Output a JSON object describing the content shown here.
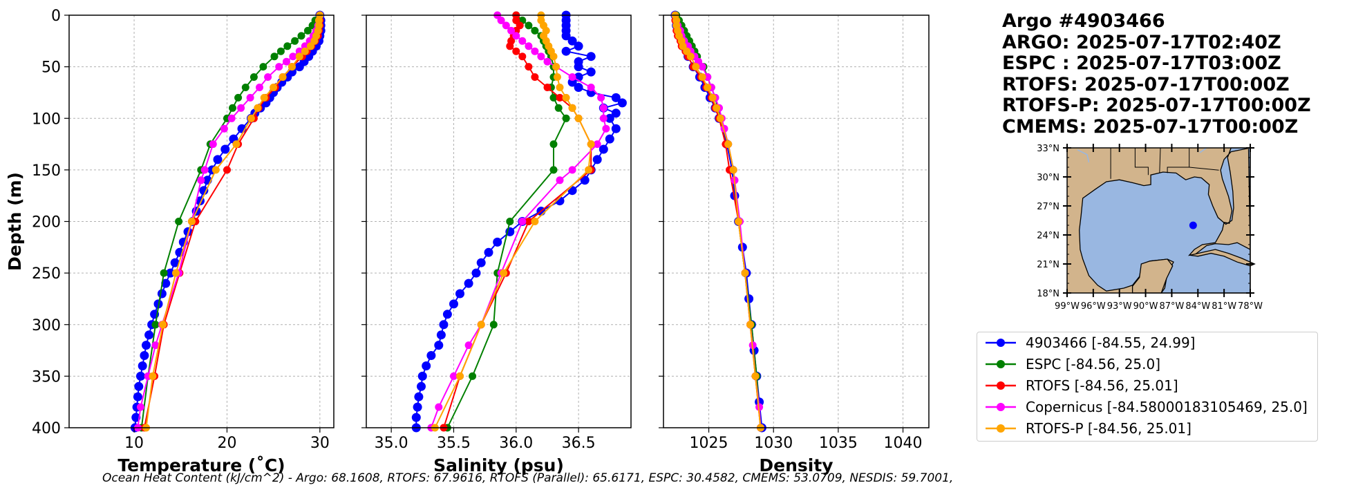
{
  "info": {
    "title": "Argo #4903466",
    "lines": [
      "ARGO: 2025-07-17T02:40Z",
      "ESPC : 2025-07-17T03:00Z",
      "RTOFS: 2025-07-17T00:00Z",
      "RTOFS-P: 2025-07-17T00:00Z",
      "CMEMS: 2025-07-17T00:00Z"
    ]
  },
  "footer": "Ocean Heat Content (kJ/cm^2) - Argo: 68.1608,  RTOFS: 67.9616,  RTOFS (Parallel): 65.6171,  ESPC: 30.4582,  CMEMS: 53.0709,  NESDIS: 59.7001,",
  "colors": {
    "argo": "#0000ff",
    "espc": "#008000",
    "rtofs": "#ff0000",
    "copernicus": "#ff00ff",
    "rtofsp": "#ffa500",
    "land": "#d2b48c",
    "ocean": "#99b7e1",
    "grid": "#b0b0b0"
  },
  "legend": [
    {
      "label": "4903466 [-84.55, 24.99]",
      "color": "#0000ff"
    },
    {
      "label": "ESPC [-84.56, 25.0]",
      "color": "#008000"
    },
    {
      "label": "RTOFS [-84.56, 25.01]",
      "color": "#ff0000"
    },
    {
      "label": "Copernicus [-84.58000183105469, 25.0]",
      "color": "#ff00ff"
    },
    {
      "label": "RTOFS-P [-84.56, 25.01]",
      "color": "#ffa500"
    }
  ],
  "map": {
    "lat_ticks": [
      "33°N",
      "30°N",
      "27°N",
      "24°N",
      "21°N",
      "18°N"
    ],
    "lat_values": [
      33,
      30,
      27,
      24,
      21,
      18
    ],
    "lon_ticks": [
      "99°W",
      "96°W",
      "93°W",
      "90°W",
      "87°W",
      "84°W",
      "81°W",
      "78°W"
    ],
    "lon_values": [
      -99,
      -96,
      -93,
      -90,
      -87,
      -84,
      -81,
      -78
    ],
    "lon_range": [
      -99,
      -78
    ],
    "lat_range": [
      18,
      33
    ],
    "float_position": [
      -84.55,
      24.99
    ]
  },
  "chart_data": [
    {
      "type": "line",
      "xlabel": "Temperature (˚C)",
      "ylabel": "Depth (m)",
      "xlim": [
        3,
        31.5
      ],
      "ylim": [
        400,
        0
      ],
      "x_ticks": [
        10,
        20,
        30
      ],
      "y_ticks": [
        0,
        50,
        100,
        150,
        200,
        250,
        300,
        350,
        400
      ],
      "series": [
        {
          "name": "4903466",
          "color": "#0000ff",
          "depth": [
            0,
            5,
            10,
            15,
            20,
            25,
            30,
            35,
            40,
            45,
            50,
            55,
            60,
            65,
            70,
            75,
            80,
            85,
            90,
            95,
            100,
            110,
            120,
            130,
            140,
            150,
            160,
            170,
            180,
            190,
            200,
            210,
            220,
            230,
            240,
            250,
            260,
            270,
            280,
            290,
            300,
            310,
            320,
            330,
            340,
            350,
            360,
            370,
            380,
            390,
            400
          ],
          "values": [
            30.0,
            30.1,
            30.1,
            30.1,
            30.0,
            29.9,
            29.6,
            29.2,
            28.8,
            28.3,
            27.8,
            27.0,
            26.5,
            25.9,
            25.4,
            25.0,
            24.6,
            24.2,
            23.6,
            23.0,
            22.6,
            21.6,
            20.7,
            19.8,
            19.0,
            18.4,
            17.9,
            17.5,
            17.1,
            16.7,
            16.3,
            15.8,
            15.3,
            14.9,
            14.4,
            13.9,
            13.4,
            13.0,
            12.6,
            12.2,
            11.9,
            11.6,
            11.3,
            11.1,
            10.9,
            10.7,
            10.5,
            10.4,
            10.3,
            10.2,
            10.1
          ]
        },
        {
          "name": "ESPC",
          "color": "#008000",
          "depth": [
            0,
            5,
            10,
            15,
            20,
            25,
            30,
            35,
            40,
            50,
            60,
            70,
            80,
            90,
            100,
            125,
            150,
            200,
            250,
            300,
            350,
            400
          ],
          "values": [
            30.0,
            29.5,
            29.2,
            28.7,
            28.0,
            27.3,
            26.5,
            25.8,
            25.1,
            23.9,
            22.9,
            22.0,
            21.2,
            20.6,
            20.0,
            18.2,
            17.2,
            14.8,
            13.2,
            12.3,
            11.5,
            10.8
          ]
        },
        {
          "name": "RTOFS",
          "color": "#ff0000",
          "depth": [
            0,
            5,
            10,
            15,
            20,
            25,
            30,
            35,
            40,
            50,
            60,
            70,
            80,
            90,
            100,
            125,
            150,
            200,
            250,
            300,
            350,
            400
          ],
          "values": [
            30.0,
            30.0,
            30.0,
            29.9,
            29.8,
            29.5,
            29.1,
            28.6,
            28.1,
            27.0,
            26.0,
            25.2,
            24.2,
            23.4,
            22.9,
            21.2,
            20.0,
            16.6,
            14.9,
            13.2,
            12.2,
            11.1
          ]
        },
        {
          "name": "Copernicus",
          "color": "#ff00ff",
          "depth": [
            0,
            5,
            10,
            15,
            20,
            25,
            30,
            35,
            40,
            45,
            50,
            60,
            70,
            80,
            90,
            100,
            110,
            125,
            150,
            160,
            200,
            250,
            300,
            320,
            350,
            380,
            400
          ],
          "values": [
            30.0,
            29.9,
            29.8,
            29.6,
            29.3,
            28.9,
            28.4,
            27.8,
            27.1,
            26.4,
            25.6,
            24.4,
            23.5,
            22.5,
            21.5,
            20.5,
            19.7,
            18.5,
            17.6,
            17.2,
            16.2,
            14.8,
            13.0,
            12.3,
            11.5,
            10.7,
            10.4
          ]
        },
        {
          "name": "RTOFS-P",
          "color": "#ffa500",
          "depth": [
            0,
            5,
            10,
            15,
            20,
            25,
            30,
            35,
            40,
            50,
            60,
            70,
            80,
            90,
            100,
            125,
            150,
            200,
            250,
            300,
            350,
            400
          ],
          "values": [
            30.0,
            29.9,
            29.9,
            29.8,
            29.6,
            29.4,
            29.0,
            28.4,
            27.8,
            27.0,
            26.0,
            25.0,
            24.0,
            23.3,
            22.6,
            21.0,
            18.8,
            16.2,
            14.5,
            13.1,
            12.0,
            11.3
          ]
        }
      ]
    },
    {
      "type": "line",
      "xlabel": "Salinity (psu)",
      "xlim": [
        34.8,
        36.92
      ],
      "ylim": [
        400,
        0
      ],
      "x_ticks": [
        35.0,
        35.5,
        36.0,
        36.5
      ],
      "y_ticks": [
        0,
        50,
        100,
        150,
        200,
        250,
        300,
        350,
        400
      ],
      "series": [
        {
          "name": "4903466",
          "color": "#0000ff",
          "depth": [
            0,
            5,
            10,
            15,
            20,
            25,
            30,
            35,
            40,
            45,
            50,
            55,
            60,
            65,
            70,
            75,
            80,
            85,
            90,
            95,
            100,
            110,
            120,
            130,
            140,
            150,
            160,
            170,
            180,
            190,
            200,
            210,
            220,
            230,
            240,
            250,
            260,
            270,
            280,
            290,
            300,
            310,
            320,
            330,
            340,
            350,
            360,
            370,
            380,
            390,
            400
          ],
          "values": [
            36.4,
            36.4,
            36.4,
            36.4,
            36.4,
            36.45,
            36.5,
            36.4,
            36.6,
            36.5,
            36.5,
            36.6,
            36.5,
            36.45,
            36.5,
            36.6,
            36.8,
            36.85,
            36.7,
            36.8,
            36.75,
            36.8,
            36.75,
            36.7,
            36.65,
            36.6,
            36.55,
            36.45,
            36.35,
            36.2,
            36.05,
            35.95,
            35.85,
            35.78,
            35.72,
            35.68,
            35.62,
            35.55,
            35.5,
            35.45,
            35.42,
            35.4,
            35.38,
            35.32,
            35.28,
            35.25,
            35.24,
            35.22,
            35.21,
            35.2,
            35.2
          ]
        },
        {
          "name": "ESPC",
          "color": "#008000",
          "depth": [
            0,
            5,
            10,
            15,
            20,
            25,
            30,
            35,
            40,
            50,
            60,
            70,
            80,
            90,
            100,
            125,
            150,
            200,
            250,
            300,
            350,
            400
          ],
          "values": [
            36.0,
            36.05,
            36.1,
            36.15,
            36.2,
            36.22,
            36.24,
            36.26,
            36.28,
            36.3,
            36.3,
            36.28,
            36.3,
            36.34,
            36.4,
            36.3,
            36.3,
            35.95,
            35.85,
            35.82,
            35.65,
            35.45
          ]
        },
        {
          "name": "RTOFS",
          "color": "#ff0000",
          "depth": [
            0,
            5,
            10,
            15,
            20,
            25,
            30,
            35,
            40,
            50,
            60,
            70,
            80,
            90,
            100,
            125,
            150,
            200,
            250,
            300,
            350,
            400
          ],
          "values": [
            36.0,
            36.0,
            36.03,
            36.0,
            35.98,
            35.96,
            35.95,
            36.0,
            36.05,
            36.1,
            36.15,
            36.25,
            36.35,
            36.45,
            36.5,
            36.6,
            36.6,
            36.1,
            35.92,
            35.72,
            35.55,
            35.42
          ]
        },
        {
          "name": "Copernicus",
          "color": "#ff00ff",
          "depth": [
            0,
            5,
            10,
            15,
            20,
            25,
            30,
            35,
            40,
            45,
            50,
            60,
            70,
            80,
            90,
            100,
            110,
            125,
            150,
            160,
            200,
            250,
            300,
            320,
            350,
            380,
            400
          ],
          "values": [
            35.85,
            35.88,
            35.92,
            35.96,
            36.0,
            36.05,
            36.1,
            36.15,
            36.2,
            36.25,
            36.32,
            36.45,
            36.6,
            36.68,
            36.7,
            36.7,
            36.72,
            36.65,
            36.45,
            36.35,
            36.05,
            35.88,
            35.72,
            35.62,
            35.5,
            35.38,
            35.32
          ]
        },
        {
          "name": "RTOFS-P",
          "color": "#ffa500",
          "depth": [
            0,
            5,
            10,
            15,
            20,
            25,
            30,
            35,
            40,
            50,
            60,
            70,
            80,
            90,
            100,
            125,
            150,
            200,
            250,
            300,
            350,
            400
          ],
          "values": [
            36.2,
            36.2,
            36.22,
            36.24,
            36.22,
            36.24,
            36.26,
            36.28,
            36.3,
            36.32,
            36.33,
            36.35,
            36.4,
            36.45,
            36.5,
            36.6,
            36.58,
            36.15,
            35.9,
            35.72,
            35.55,
            35.35
          ]
        }
      ]
    },
    {
      "type": "line",
      "xlabel": "Density",
      "xlim": [
        1021.5,
        1042
      ],
      "ylim": [
        400,
        0
      ],
      "x_ticks": [
        1025,
        1030,
        1035,
        1040
      ],
      "y_ticks": [
        0,
        50,
        100,
        150,
        200,
        250,
        300,
        350,
        400
      ],
      "series": [
        {
          "name": "4903466",
          "color": "#0000ff",
          "depth": [
            0,
            10,
            20,
            30,
            40,
            50,
            60,
            70,
            80,
            90,
            100,
            125,
            150,
            175,
            200,
            225,
            250,
            275,
            300,
            325,
            350,
            375,
            400
          ],
          "values": [
            1022.4,
            1022.5,
            1022.7,
            1023.0,
            1023.4,
            1023.8,
            1024.3,
            1024.7,
            1025.1,
            1025.5,
            1025.8,
            1026.4,
            1026.8,
            1027.0,
            1027.3,
            1027.6,
            1027.9,
            1028.1,
            1028.3,
            1028.5,
            1028.7,
            1028.9,
            1029.1
          ]
        },
        {
          "name": "ESPC",
          "color": "#008000",
          "depth": [
            0,
            5,
            10,
            15,
            20,
            25,
            30,
            35,
            40,
            50,
            60,
            70,
            80,
            90,
            100,
            125,
            150,
            200,
            250,
            300,
            350,
            400
          ],
          "values": [
            1022.5,
            1022.7,
            1022.9,
            1023.1,
            1023.3,
            1023.5,
            1023.7,
            1023.9,
            1024.1,
            1024.6,
            1024.9,
            1025.2,
            1025.5,
            1025.7,
            1025.9,
            1026.5,
            1026.9,
            1027.3,
            1027.8,
            1028.3,
            1028.7,
            1029.0
          ]
        },
        {
          "name": "RTOFS",
          "color": "#ff0000",
          "depth": [
            0,
            5,
            10,
            15,
            20,
            25,
            30,
            35,
            40,
            50,
            60,
            70,
            80,
            90,
            100,
            125,
            150,
            200,
            250,
            300,
            350,
            400
          ],
          "values": [
            1022.4,
            1022.4,
            1022.5,
            1022.5,
            1022.6,
            1022.8,
            1022.9,
            1023.2,
            1023.4,
            1023.8,
            1024.4,
            1024.8,
            1025.2,
            1025.5,
            1025.8,
            1026.3,
            1026.6,
            1027.3,
            1027.8,
            1028.2,
            1028.6,
            1029.0
          ]
        },
        {
          "name": "Copernicus",
          "color": "#ff00ff",
          "depth": [
            0,
            5,
            10,
            15,
            20,
            25,
            30,
            35,
            40,
            45,
            50,
            60,
            70,
            80,
            90,
            100,
            110,
            125,
            150,
            160,
            200,
            250,
            300,
            320,
            350,
            380,
            400
          ],
          "values": [
            1022.4,
            1022.5,
            1022.6,
            1022.8,
            1022.9,
            1023.1,
            1023.4,
            1023.6,
            1023.9,
            1024.2,
            1024.5,
            1024.9,
            1025.2,
            1025.5,
            1025.8,
            1026.0,
            1026.2,
            1026.5,
            1026.9,
            1027.0,
            1027.4,
            1027.8,
            1028.2,
            1028.4,
            1028.6,
            1028.9,
            1029.0
          ]
        },
        {
          "name": "RTOFS-P",
          "color": "#ffa500",
          "depth": [
            0,
            5,
            10,
            15,
            20,
            25,
            30,
            35,
            40,
            50,
            60,
            70,
            80,
            90,
            100,
            125,
            150,
            200,
            250,
            300,
            350,
            400
          ],
          "values": [
            1022.4,
            1022.5,
            1022.5,
            1022.6,
            1022.7,
            1022.9,
            1023.0,
            1023.3,
            1023.6,
            1024.0,
            1024.5,
            1024.9,
            1025.3,
            1025.6,
            1025.9,
            1026.5,
            1026.9,
            1027.3,
            1027.8,
            1028.2,
            1028.6,
            1029.0
          ]
        }
      ]
    }
  ]
}
